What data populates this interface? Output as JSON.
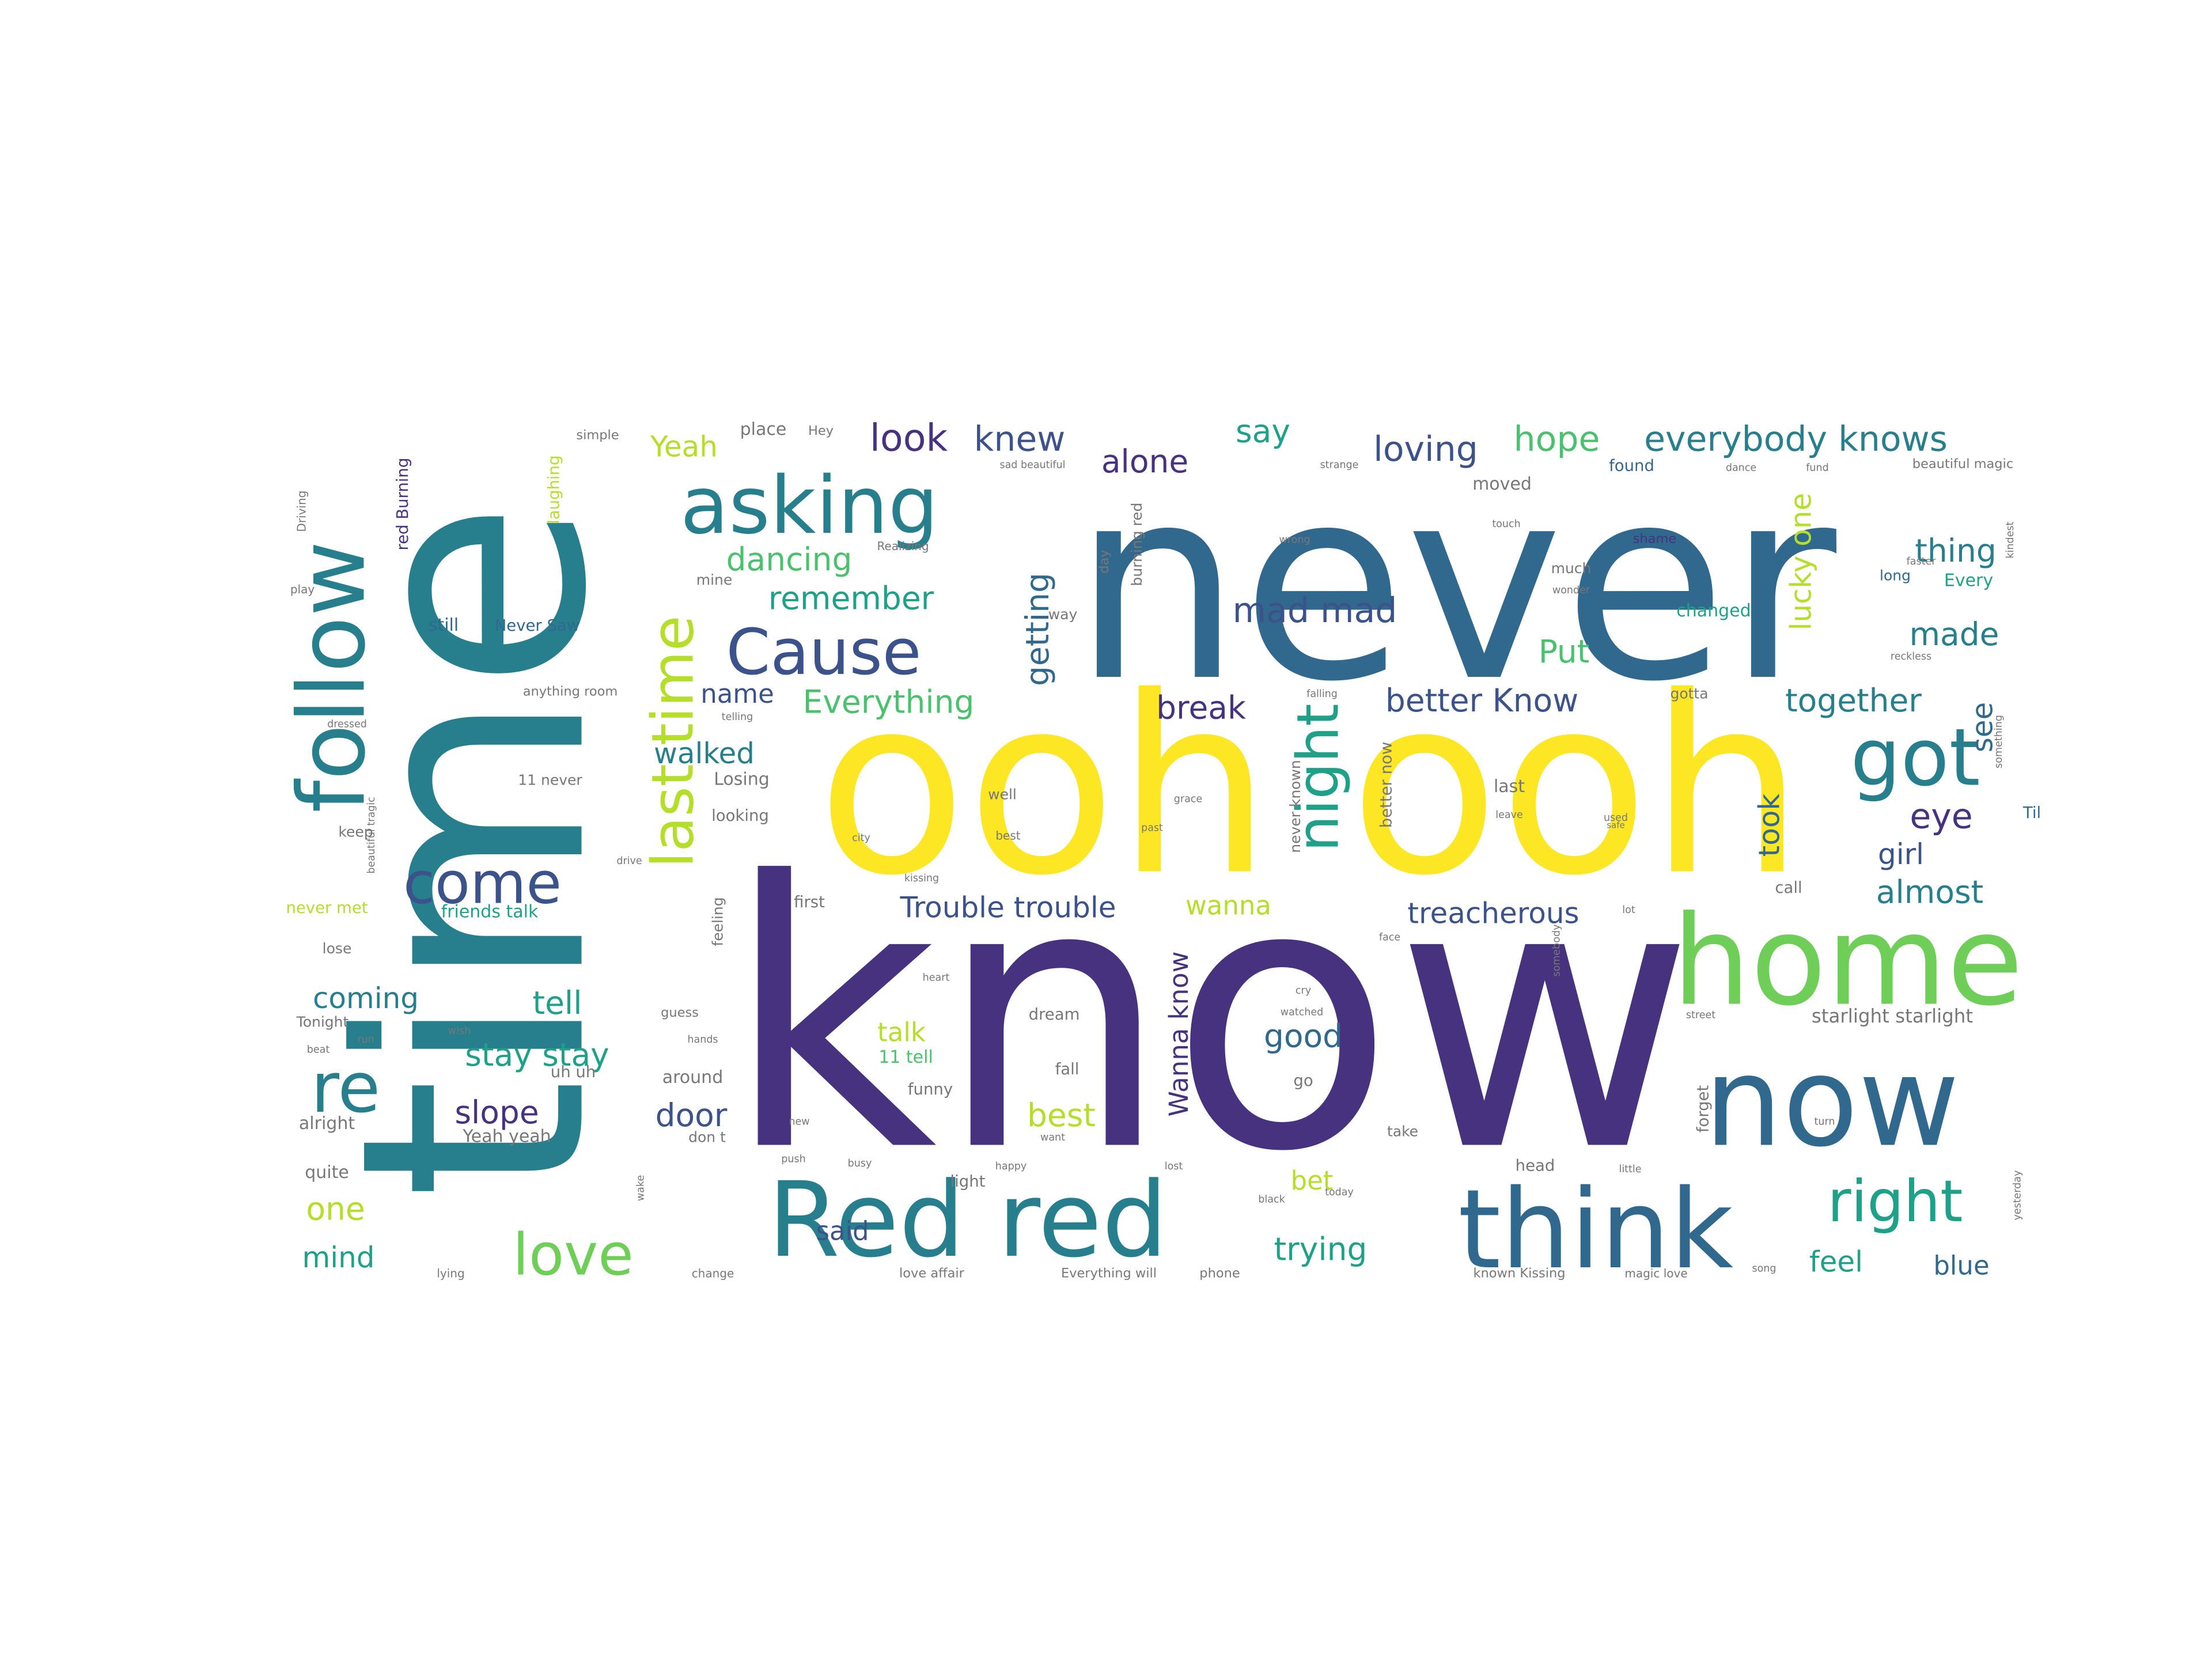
{
  "words": [
    {
      "text": "know",
      "color": "#46327e"
    },
    {
      "text": "never",
      "color": "#31688e"
    },
    {
      "text": "time",
      "color": "#277f8e"
    },
    {
      "text": "ooh ooh",
      "color": "#fde725"
    },
    {
      "text": "home",
      "color": "#6ece58"
    },
    {
      "text": "now",
      "color": "#31688e"
    },
    {
      "text": "think",
      "color": "#31688e"
    },
    {
      "text": "Red red",
      "color": "#277f8e"
    },
    {
      "text": "follow",
      "color": "#277f8e"
    },
    {
      "text": "asking",
      "color": "#277f8e"
    },
    {
      "text": "Cause",
      "color": "#3b528b"
    },
    {
      "text": "last time",
      "color": "#b5de2b"
    },
    {
      "text": "re",
      "color": "#277f8e"
    },
    {
      "text": "come",
      "color": "#3b528b"
    },
    {
      "text": "got",
      "color": "#277f8e"
    },
    {
      "text": "night",
      "color": "#1fa088"
    },
    {
      "text": "right",
      "color": "#1fa088"
    },
    {
      "text": "love",
      "color": "#6ece58"
    },
    {
      "text": "look",
      "color": "#46327e"
    },
    {
      "text": "knew",
      "color": "#3b528b"
    },
    {
      "text": "alone",
      "color": "#46327e"
    },
    {
      "text": "say",
      "color": "#1fa088"
    },
    {
      "text": "loving",
      "color": "#3b528b"
    },
    {
      "text": "hope",
      "color": "#4ac16d"
    },
    {
      "text": "everybody knows",
      "color": "#277f8e"
    },
    {
      "text": "Yeah",
      "color": "#b5de2b"
    },
    {
      "text": "dancing",
      "color": "#4ac16d"
    },
    {
      "text": "remember",
      "color": "#1fa088"
    },
    {
      "text": "mad mad",
      "color": "#3b528b"
    },
    {
      "text": "thing",
      "color": "#277f8e"
    },
    {
      "text": "made",
      "color": "#277f8e"
    },
    {
      "text": "lucky one",
      "color": "#b5de2b"
    },
    {
      "text": "Put",
      "color": "#4ac16d"
    },
    {
      "text": "getting",
      "color": "#31688e"
    },
    {
      "text": "name",
      "color": "#3b528b"
    },
    {
      "text": "Everything",
      "color": "#4ac16d"
    },
    {
      "text": "break",
      "color": "#46327e"
    },
    {
      "text": "better Know",
      "color": "#3b528b"
    },
    {
      "text": "together",
      "color": "#277f8e"
    },
    {
      "text": "see",
      "color": "#31688e"
    },
    {
      "text": "walked",
      "color": "#277f8e"
    },
    {
      "text": "took",
      "color": "#31688e"
    },
    {
      "text": "eye",
      "color": "#46327e"
    },
    {
      "text": "girl",
      "color": "#3b528b"
    },
    {
      "text": "Trouble trouble",
      "color": "#3b528b"
    },
    {
      "text": "wanna",
      "color": "#b5de2b"
    },
    {
      "text": "treacherous",
      "color": "#3b528b"
    },
    {
      "text": "almost",
      "color": "#277f8e"
    },
    {
      "text": "coming",
      "color": "#277f8e"
    },
    {
      "text": "tell",
      "color": "#1fa088"
    },
    {
      "text": "talk",
      "color": "#b5de2b"
    },
    {
      "text": "Wanna know",
      "color": "#46327e"
    },
    {
      "text": "good",
      "color": "#31688e"
    },
    {
      "text": "stay stay",
      "color": "#1fa088"
    },
    {
      "text": "slope",
      "color": "#46327e"
    },
    {
      "text": "door",
      "color": "#3b528b"
    },
    {
      "text": "best",
      "color": "#b5de2b"
    },
    {
      "text": "one",
      "color": "#b5de2b"
    },
    {
      "text": "said",
      "color": "#3b528b"
    },
    {
      "text": "bet",
      "color": "#b5de2b"
    },
    {
      "text": "trying",
      "color": "#1fa088"
    },
    {
      "text": "mind",
      "color": "#1fa088"
    },
    {
      "text": "feel",
      "color": "#1fa088"
    },
    {
      "text": "blue",
      "color": "#31688e"
    },
    {
      "text": "place",
      "color": "#777777"
    },
    {
      "text": "Hey",
      "color": "#777777"
    },
    {
      "text": "simple",
      "color": "#777777"
    },
    {
      "text": "laughing",
      "color": "#b5de2b"
    },
    {
      "text": "red Burning",
      "color": "#46327e"
    },
    {
      "text": "Driving",
      "color": "#777777"
    },
    {
      "text": "still",
      "color": "#31688e"
    },
    {
      "text": "Never Saw",
      "color": "#31688e"
    },
    {
      "text": "Realizing",
      "color": "#777777"
    },
    {
      "text": "mine",
      "color": "#777777"
    },
    {
      "text": "burning red",
      "color": "#777777"
    },
    {
      "text": "way",
      "color": "#777777"
    },
    {
      "text": "day",
      "color": "#777777"
    },
    {
      "text": "moved",
      "color": "#777777"
    },
    {
      "text": "shame",
      "color": "#46327e"
    },
    {
      "text": "much",
      "color": "#777777"
    },
    {
      "text": "changed",
      "color": "#1fa088"
    },
    {
      "text": "found",
      "color": "#31688e"
    },
    {
      "text": "long",
      "color": "#31688e"
    },
    {
      "text": "Every",
      "color": "#1fa088"
    },
    {
      "text": "beautiful magic",
      "color": "#777777"
    },
    {
      "text": "gotta",
      "color": "#777777"
    },
    {
      "text": "Til",
      "color": "#31688e"
    },
    {
      "text": "last",
      "color": "#777777"
    },
    {
      "text": "11 never",
      "color": "#777777"
    },
    {
      "text": "Losing",
      "color": "#777777"
    },
    {
      "text": "looking",
      "color": "#777777"
    },
    {
      "text": "keep",
      "color": "#777777"
    },
    {
      "text": "first",
      "color": "#777777"
    },
    {
      "text": "never met",
      "color": "#b5de2b"
    },
    {
      "text": "friends talk",
      "color": "#1fa088"
    },
    {
      "text": "guess",
      "color": "#777777"
    },
    {
      "text": "11 tell",
      "color": "#4ac16d"
    },
    {
      "text": "dream",
      "color": "#777777"
    },
    {
      "text": "fall",
      "color": "#777777"
    },
    {
      "text": "funny",
      "color": "#777777"
    },
    {
      "text": "Tonight",
      "color": "#777777"
    },
    {
      "text": "around",
      "color": "#777777"
    },
    {
      "text": "uh uh",
      "color": "#777777"
    },
    {
      "text": "alright",
      "color": "#777777"
    },
    {
      "text": "Yeah yeah",
      "color": "#777777"
    },
    {
      "text": "don t",
      "color": "#777777"
    },
    {
      "text": "quite",
      "color": "#777777"
    },
    {
      "text": "light",
      "color": "#777777"
    },
    {
      "text": "head",
      "color": "#777777"
    },
    {
      "text": "forget",
      "color": "#777777"
    },
    {
      "text": "starlight starlight",
      "color": "#777777"
    },
    {
      "text": "go",
      "color": "#777777"
    },
    {
      "text": "call",
      "color": "#777777"
    },
    {
      "text": "lose",
      "color": "#777777"
    },
    {
      "text": "play",
      "color": "#777777"
    },
    {
      "text": "feeling",
      "color": "#777777"
    },
    {
      "text": "well",
      "color": "#777777"
    },
    {
      "text": "never known",
      "color": "#777777"
    },
    {
      "text": "better now",
      "color": "#777777"
    },
    {
      "text": "anything room",
      "color": "#777777"
    },
    {
      "text": "take",
      "color": "#777777"
    },
    {
      "text": "Everything will",
      "color": "#777777"
    },
    {
      "text": "phone",
      "color": "#777777"
    },
    {
      "text": "love affair",
      "color": "#777777"
    },
    {
      "text": "known Kissing",
      "color": "#777777"
    },
    {
      "text": "magic love",
      "color": "#777777"
    },
    {
      "text": "change",
      "color": "#777777"
    },
    {
      "text": "lying",
      "color": "#777777"
    },
    {
      "text": "sad beautiful",
      "color": "#777777"
    },
    {
      "text": "strange",
      "color": "#777777"
    },
    {
      "text": "dance",
      "color": "#777777"
    },
    {
      "text": "fund",
      "color": "#777777"
    },
    {
      "text": "touch",
      "color": "#777777"
    },
    {
      "text": "wrong",
      "color": "#777777"
    },
    {
      "text": "wonder",
      "color": "#777777"
    },
    {
      "text": "reckless",
      "color": "#777777"
    },
    {
      "text": "falling",
      "color": "#777777"
    },
    {
      "text": "grace",
      "color": "#777777"
    },
    {
      "text": "leave",
      "color": "#777777"
    },
    {
      "text": "used",
      "color": "#777777"
    },
    {
      "text": "safe",
      "color": "#777777"
    },
    {
      "text": "city",
      "color": "#777777"
    },
    {
      "text": "best",
      "color": "#777777"
    },
    {
      "text": "past",
      "color": "#777777"
    },
    {
      "text": "heart",
      "color": "#777777"
    },
    {
      "text": "street",
      "color": "#777777"
    },
    {
      "text": "want",
      "color": "#777777"
    },
    {
      "text": "new",
      "color": "#777777"
    },
    {
      "text": "happy",
      "color": "#777777"
    },
    {
      "text": "lost",
      "color": "#777777"
    },
    {
      "text": "little",
      "color": "#777777"
    },
    {
      "text": "black",
      "color": "#777777"
    },
    {
      "text": "today",
      "color": "#777777"
    },
    {
      "text": "song",
      "color": "#777777"
    },
    {
      "text": "turn",
      "color": "#777777"
    },
    {
      "text": "wish",
      "color": "#777777"
    },
    {
      "text": "hands",
      "color": "#777777"
    },
    {
      "text": "run",
      "color": "#777777"
    },
    {
      "text": "push",
      "color": "#777777"
    },
    {
      "text": "busy",
      "color": "#777777"
    },
    {
      "text": "wake",
      "color": "#777777"
    },
    {
      "text": "cry",
      "color": "#777777"
    },
    {
      "text": "watched",
      "color": "#777777"
    },
    {
      "text": "beat",
      "color": "#777777"
    },
    {
      "text": "somebody",
      "color": "#777777"
    },
    {
      "text": "yesterday",
      "color": "#777777"
    },
    {
      "text": "something",
      "color": "#777777"
    },
    {
      "text": "faster",
      "color": "#777777"
    },
    {
      "text": "kindest",
      "color": "#777777"
    },
    {
      "text": "drive",
      "color": "#777777"
    },
    {
      "text": "face",
      "color": "#777777"
    },
    {
      "text": "lot",
      "color": "#777777"
    },
    {
      "text": "kissing",
      "color": "#777777"
    },
    {
      "text": "telling",
      "color": "#777777"
    },
    {
      "text": "dressed",
      "color": "#777777"
    },
    {
      "text": "beautiful tragic",
      "color": "#777777"
    }
  ]
}
